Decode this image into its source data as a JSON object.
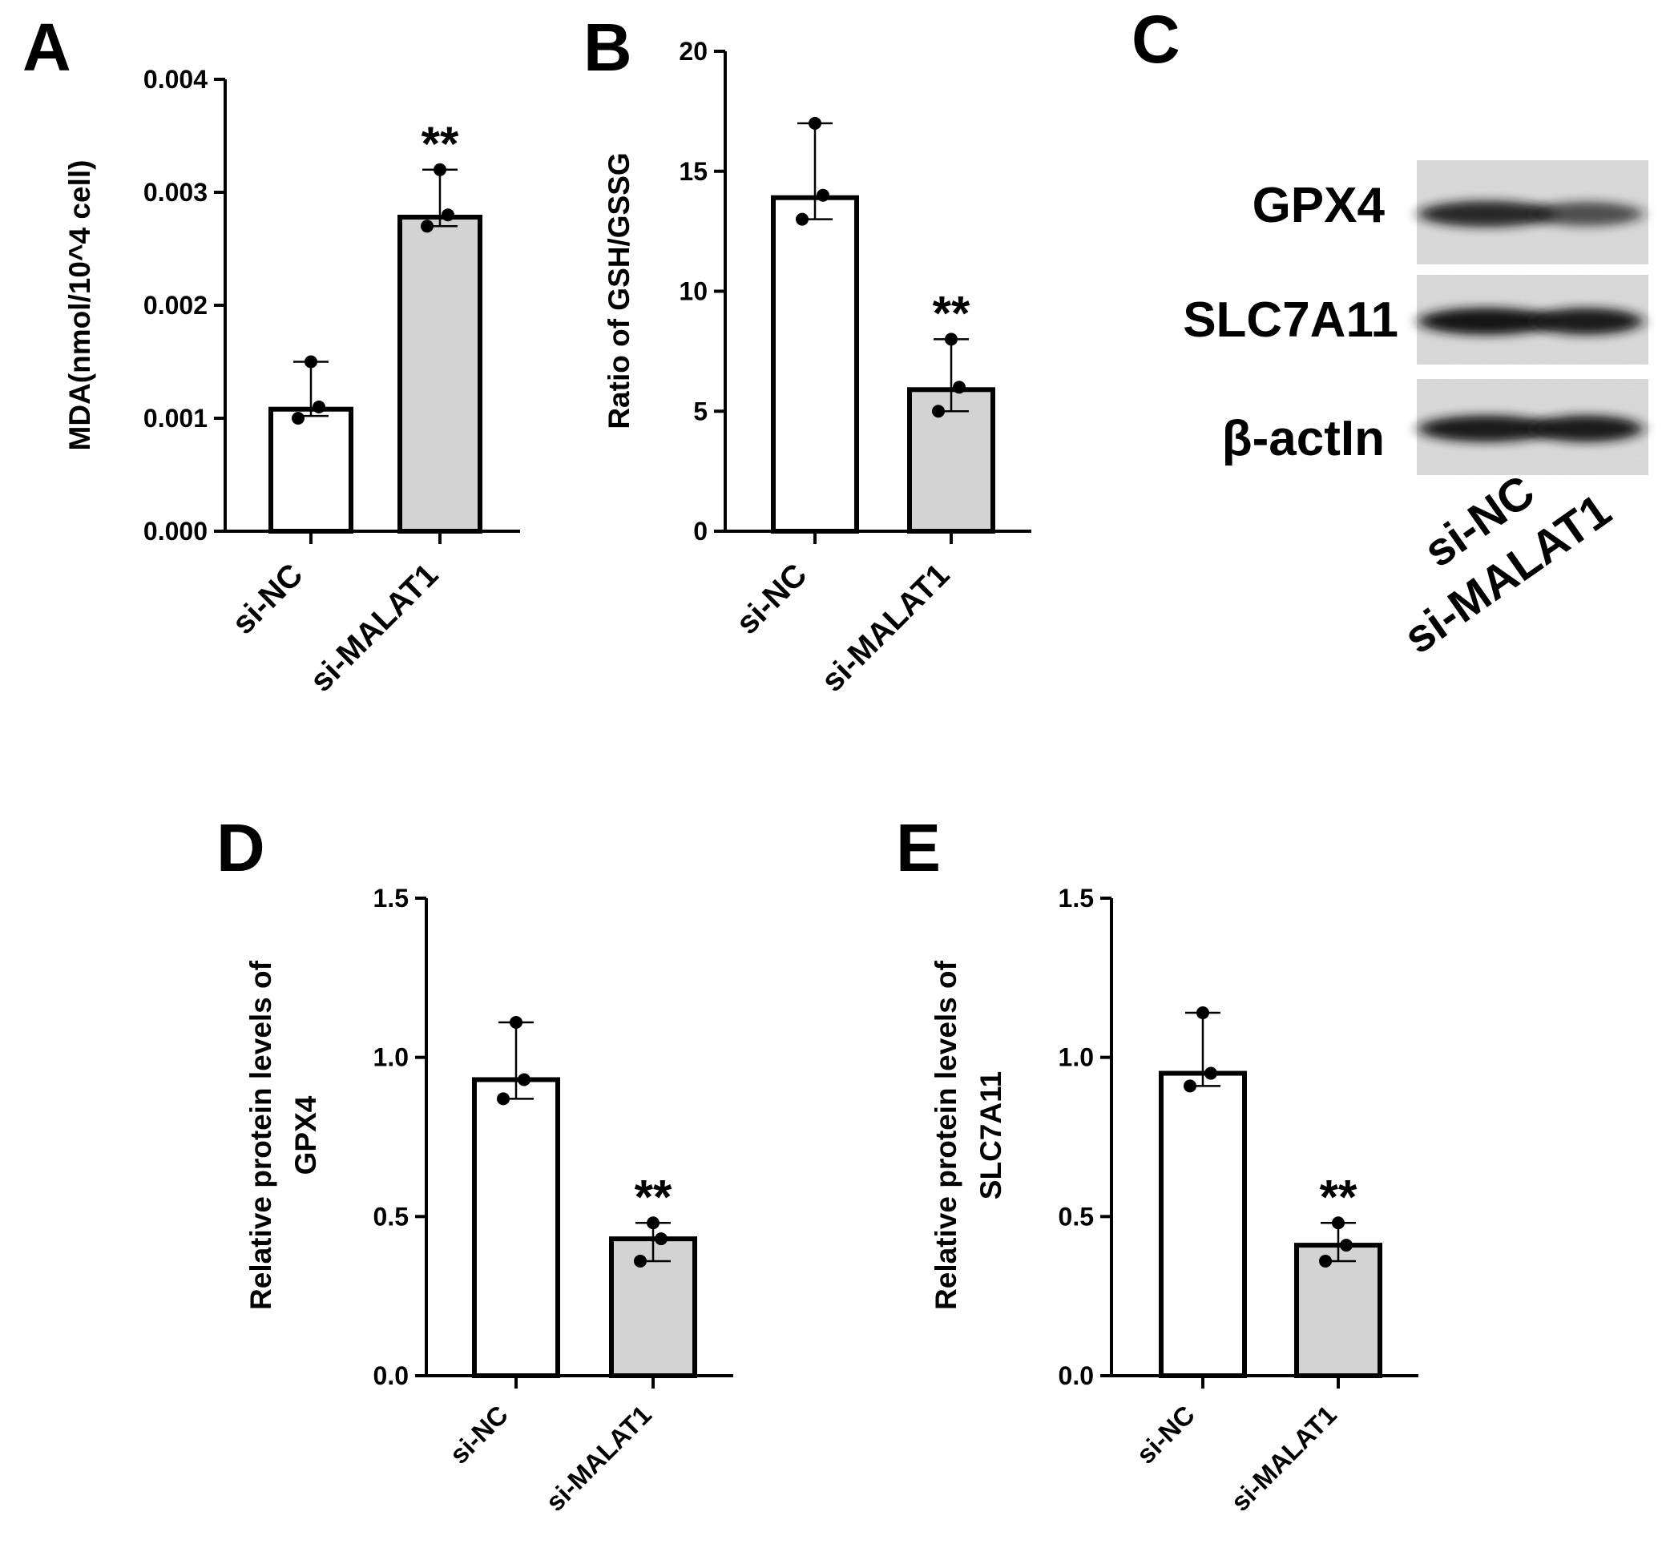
{
  "panels": [
    {
      "id": "A",
      "letter": "A"
    },
    {
      "id": "B",
      "letter": "B"
    },
    {
      "id": "C",
      "letter": "C"
    },
    {
      "id": "D",
      "letter": "D"
    },
    {
      "id": "E",
      "letter": "E"
    }
  ],
  "colors": {
    "bar_control": "#ffffff",
    "bar_treatment": "#d3d3d3",
    "stroke": "#000000",
    "blot_background": "#d9d9d9",
    "band": "#151515"
  },
  "chart_data": [
    {
      "panel": "A",
      "type": "bar",
      "categories": [
        "si-NC",
        "si-MALAT1"
      ],
      "values": [
        0.00108,
        0.00278
      ],
      "error_bars": [
        {
          "low": 0.00102,
          "high": 0.0015
        },
        {
          "low": 0.0027,
          "high": 0.0032
        }
      ],
      "points": [
        [
          0.001,
          0.0011,
          0.0015
        ],
        [
          0.0027,
          0.0028,
          0.0032
        ]
      ],
      "significance": [
        "",
        "**"
      ],
      "ylabel": "MDA(nmol/10^4 cell)",
      "ylim": [
        0,
        0.004
      ],
      "yticks": [
        "0.000",
        "0.001",
        "0.002",
        "0.003",
        "0.004"
      ],
      "ytick_values": [
        0,
        0.001,
        0.002,
        0.003,
        0.004
      ]
    },
    {
      "panel": "B",
      "type": "bar",
      "categories": [
        "si-NC",
        "si-MALAT1"
      ],
      "values": [
        13.9,
        5.9
      ],
      "error_bars": [
        {
          "low": 13.0,
          "high": 17.0
        },
        {
          "low": 5.0,
          "high": 8.0
        }
      ],
      "points": [
        [
          13.0,
          14.0,
          17.0
        ],
        [
          5.0,
          6.0,
          8.0
        ]
      ],
      "significance": [
        "",
        "**"
      ],
      "ylabel": "Ratio of GSH/GSSG",
      "ylim": [
        0,
        20
      ],
      "yticks": [
        "0",
        "5",
        "10",
        "15",
        "20"
      ],
      "ytick_values": [
        0,
        5,
        10,
        15,
        20
      ]
    },
    {
      "panel": "D",
      "type": "bar",
      "categories": [
        "si-NC",
        "si-MALAT1"
      ],
      "values": [
        0.93,
        0.43
      ],
      "error_bars": [
        {
          "low": 0.87,
          "high": 1.11
        },
        {
          "low": 0.36,
          "high": 0.48
        }
      ],
      "points": [
        [
          0.87,
          0.93,
          1.11
        ],
        [
          0.36,
          0.43,
          0.48
        ]
      ],
      "significance": [
        "",
        "**"
      ],
      "ylabel": "Relative protein levels of GPX4",
      "ylabel_lines": [
        "Relative protein levels of",
        "GPX4"
      ],
      "ylim": [
        0,
        1.5
      ],
      "yticks": [
        "0.0",
        "0.5",
        "1.0",
        "1.5"
      ],
      "ytick_values": [
        0,
        0.5,
        1.0,
        1.5
      ]
    },
    {
      "panel": "E",
      "type": "bar",
      "categories": [
        "si-NC",
        "si-MALAT1"
      ],
      "values": [
        0.95,
        0.41
      ],
      "error_bars": [
        {
          "low": 0.91,
          "high": 1.14
        },
        {
          "low": 0.36,
          "high": 0.48
        }
      ],
      "points": [
        [
          0.91,
          0.95,
          1.14
        ],
        [
          0.36,
          0.41,
          0.48
        ]
      ],
      "significance": [
        "",
        "**"
      ],
      "ylabel": "Relative protein levels of SLC7A11",
      "ylabel_lines": [
        "Relative protein levels of",
        "SLC7A11"
      ],
      "ylim": [
        0,
        1.5
      ],
      "yticks": [
        "0.0",
        "0.5",
        "1.0",
        "1.5"
      ],
      "ytick_values": [
        0,
        0.5,
        1.0,
        1.5
      ]
    }
  ],
  "western_blot": {
    "panel": "C",
    "rows": [
      {
        "label": "GPX4",
        "band_intensity": [
          0.85,
          0.55
        ]
      },
      {
        "label": "SLC7A11",
        "band_intensity": [
          1.0,
          0.95
        ]
      },
      {
        "label": "β-actIn",
        "band_intensity": [
          0.95,
          0.95
        ]
      }
    ],
    "lanes": [
      "si-NC",
      "si-MALAT1"
    ]
  }
}
